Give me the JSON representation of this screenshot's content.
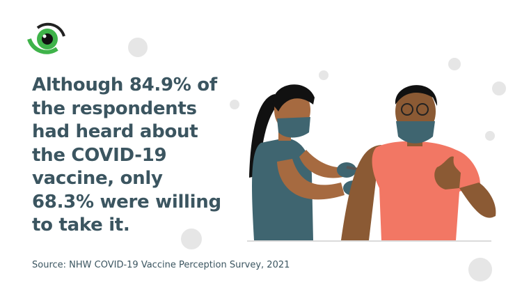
{
  "headline": {
    "lines": [
      "Although 84.9% of",
      "the respondents",
      "had heard about",
      "the COVID-19",
      "vaccine, only",
      "68.3% were willing",
      "to take it."
    ]
  },
  "source": "Source: NHW COVID-19 Vaccine Perception Survey, 2021"
}
